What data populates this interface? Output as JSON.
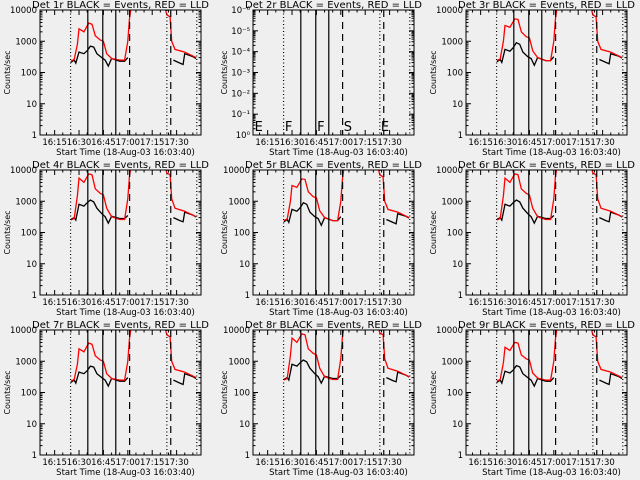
{
  "chart_data": {
    "type": "line",
    "layout": "3x3 grid",
    "common": {
      "xlabel": "Start Time (18-Aug-03 16:03:40)",
      "ylabel": "Counts/sec",
      "x_units": "minutes after 16:00",
      "xlim": [
        6,
        105
      ],
      "x_ticks": [
        15,
        30,
        45,
        60,
        75,
        90
      ],
      "x_tick_labels": [
        "16:15",
        "16:30",
        "16:45",
        "17:00",
        "17:15",
        "17:30"
      ],
      "yscale": "log",
      "markers": [
        {
          "t": 24.8,
          "style": "dotted"
        },
        {
          "t": 35.4,
          "style": "solid"
        },
        {
          "t": 44.6,
          "style": "solid"
        },
        {
          "t": 52.6,
          "style": "solid"
        },
        {
          "t": 61.1,
          "style": "dashed"
        },
        {
          "t": 84.0,
          "style": "dotted"
        },
        {
          "t": 86.4,
          "style": "dashed"
        },
        {
          "t": 102.4,
          "style": "dotted"
        }
      ],
      "red_x": [
        6,
        25,
        27,
        29,
        30,
        33,
        36,
        38,
        40,
        43,
        45,
        47,
        50,
        55,
        58,
        60,
        61,
        63,
        81,
        84,
        86,
        87,
        89,
        95,
        102
      ],
      "black_x": [
        6,
        25,
        27,
        28,
        30,
        33,
        35,
        37,
        39,
        41,
        44,
        46,
        48,
        50,
        55,
        58,
        60,
        88,
        92,
        94,
        95,
        100,
        102
      ],
      "colors": {
        "events": "#000000",
        "lld": "#ff0000"
      }
    },
    "panels": [
      {
        "title": "Det 1r BLACK = Events, RED = LLD",
        "ylim": [
          1,
          10000
        ],
        "y_tick_labels": [
          "1",
          "10",
          "100",
          "1000",
          "10000"
        ],
        "red": [
          230,
          230,
          260,
          800,
          2500,
          2000,
          3800,
          3500,
          1500,
          1100,
          1000,
          400,
          280,
          250,
          250,
          1000,
          5000,
          30000,
          30000,
          7000,
          6000,
          1000,
          550,
          450,
          300
        ],
        "black": [
          210,
          210,
          250,
          200,
          450,
          400,
          500,
          700,
          650,
          400,
          300,
          250,
          160,
          280,
          230,
          230,
          300,
          250,
          200,
          180,
          400,
          320,
          280
        ]
      },
      {
        "title": "Det 2r BLACK = Events, RED = LLD",
        "ylim": [
          1,
          1000000
        ],
        "y_tick_labels": [
          "10⁰",
          "10⁻¹",
          "10⁻²",
          "10⁻³",
          "10⁻⁴",
          "10⁻⁵",
          "10⁻⁶"
        ],
        "red": [],
        "black": [],
        "marker_labels": [
          {
            "t": 7,
            "label": "E"
          },
          {
            "t": 25.6,
            "label": "F"
          },
          {
            "t": 45.4,
            "label": "F"
          },
          {
            "t": 61.8,
            "label": "S"
          },
          {
            "t": 84.6,
            "label": "E"
          }
        ]
      },
      {
        "title": "Det 3r BLACK = Events, RED = LLD",
        "ylim": [
          1,
          10000
        ],
        "y_tick_labels": [
          "1",
          "10",
          "100",
          "1000",
          "10000"
        ],
        "red": [
          240,
          240,
          270,
          1000,
          3200,
          2800,
          5200,
          5000,
          2000,
          1400,
          1300,
          500,
          300,
          240,
          240,
          1000,
          5000,
          30000,
          30000,
          7000,
          6000,
          1000,
          550,
          450,
          300
        ],
        "black": [
          220,
          220,
          260,
          210,
          550,
          480,
          620,
          900,
          800,
          450,
          320,
          280,
          170,
          300,
          240,
          240,
          320,
          260,
          210,
          190,
          400,
          330,
          290
        ]
      },
      {
        "title": "Det 4r BLACK = Events, RED = LLD",
        "ylim": [
          1,
          10000
        ],
        "y_tick_labels": [
          "1",
          "10",
          "100",
          "1000",
          "10000"
        ],
        "red": [
          250,
          250,
          280,
          1500,
          5500,
          4000,
          7500,
          7000,
          2500,
          1800,
          1600,
          600,
          320,
          260,
          260,
          1200,
          6000,
          30000,
          30000,
          8000,
          7000,
          1200,
          600,
          480,
          320
        ],
        "black": [
          260,
          260,
          300,
          250,
          800,
          700,
          900,
          1100,
          950,
          600,
          400,
          320,
          200,
          330,
          280,
          280,
          350,
          300,
          240,
          220,
          450,
          360,
          310
        ]
      },
      {
        "title": "Det 5r BLACK = Events, RED = LLD",
        "ylim": [
          1,
          10000
        ],
        "y_tick_labels": [
          "1",
          "10",
          "100",
          "1000",
          "10000"
        ],
        "red": [
          240,
          240,
          270,
          1000,
          3200,
          2800,
          5200,
          5000,
          2000,
          1400,
          1300,
          500,
          300,
          240,
          240,
          1000,
          5000,
          30000,
          30000,
          7000,
          6000,
          1000,
          550,
          450,
          300
        ],
        "black": [
          220,
          220,
          260,
          210,
          550,
          480,
          620,
          900,
          800,
          450,
          320,
          280,
          170,
          300,
          240,
          240,
          320,
          260,
          210,
          190,
          400,
          330,
          290
        ]
      },
      {
        "title": "Det 6r BLACK = Events, RED = LLD",
        "ylim": [
          1,
          10000
        ],
        "y_tick_labels": [
          "1",
          "10",
          "100",
          "1000",
          "10000"
        ],
        "red": [
          250,
          250,
          280,
          1500,
          5500,
          4000,
          7500,
          7000,
          2500,
          1800,
          1600,
          600,
          320,
          260,
          260,
          1200,
          6000,
          30000,
          30000,
          8000,
          7000,
          1200,
          600,
          480,
          320
        ],
        "black": [
          260,
          260,
          300,
          250,
          800,
          700,
          900,
          1100,
          950,
          600,
          400,
          320,
          200,
          330,
          280,
          280,
          350,
          300,
          240,
          220,
          450,
          360,
          310
        ]
      },
      {
        "title": "Det 7r BLACK = Events, RED = LLD",
        "ylim": [
          1,
          10000
        ],
        "y_tick_labels": [
          "1",
          "10",
          "100",
          "1000",
          "10000"
        ],
        "red": [
          230,
          230,
          260,
          800,
          2500,
          2000,
          3800,
          3500,
          1500,
          1100,
          1000,
          400,
          280,
          250,
          250,
          1000,
          5000,
          30000,
          30000,
          7000,
          6000,
          1000,
          550,
          450,
          300
        ],
        "black": [
          210,
          210,
          250,
          200,
          450,
          400,
          500,
          700,
          650,
          400,
          300,
          250,
          160,
          280,
          230,
          230,
          300,
          250,
          200,
          180,
          400,
          320,
          280
        ]
      },
      {
        "title": "Det 8r BLACK = Events, RED = LLD",
        "ylim": [
          1,
          10000
        ],
        "y_tick_labels": [
          "1",
          "10",
          "100",
          "1000",
          "10000"
        ],
        "red": [
          250,
          250,
          280,
          1500,
          5500,
          4000,
          7500,
          7000,
          2500,
          1800,
          1600,
          600,
          320,
          260,
          260,
          1200,
          6000,
          30000,
          30000,
          8000,
          7000,
          1200,
          600,
          480,
          320
        ],
        "black": [
          260,
          260,
          300,
          250,
          800,
          700,
          900,
          1100,
          950,
          600,
          400,
          320,
          200,
          330,
          280,
          280,
          350,
          300,
          240,
          220,
          450,
          360,
          310
        ]
      },
      {
        "title": "Det 9r BLACK = Events, RED = LLD",
        "ylim": [
          1,
          10000
        ],
        "y_tick_labels": [
          "1",
          "10",
          "100",
          "1000",
          "10000"
        ],
        "red": [
          230,
          230,
          260,
          900,
          2800,
          2200,
          4000,
          3800,
          1600,
          1200,
          1100,
          420,
          290,
          250,
          250,
          1000,
          5000,
          30000,
          30000,
          7000,
          6000,
          1000,
          550,
          450,
          300
        ],
        "black": [
          210,
          210,
          250,
          200,
          480,
          420,
          520,
          720,
          660,
          400,
          300,
          250,
          160,
          280,
          230,
          230,
          300,
          250,
          200,
          180,
          400,
          320,
          280
        ]
      }
    ]
  }
}
